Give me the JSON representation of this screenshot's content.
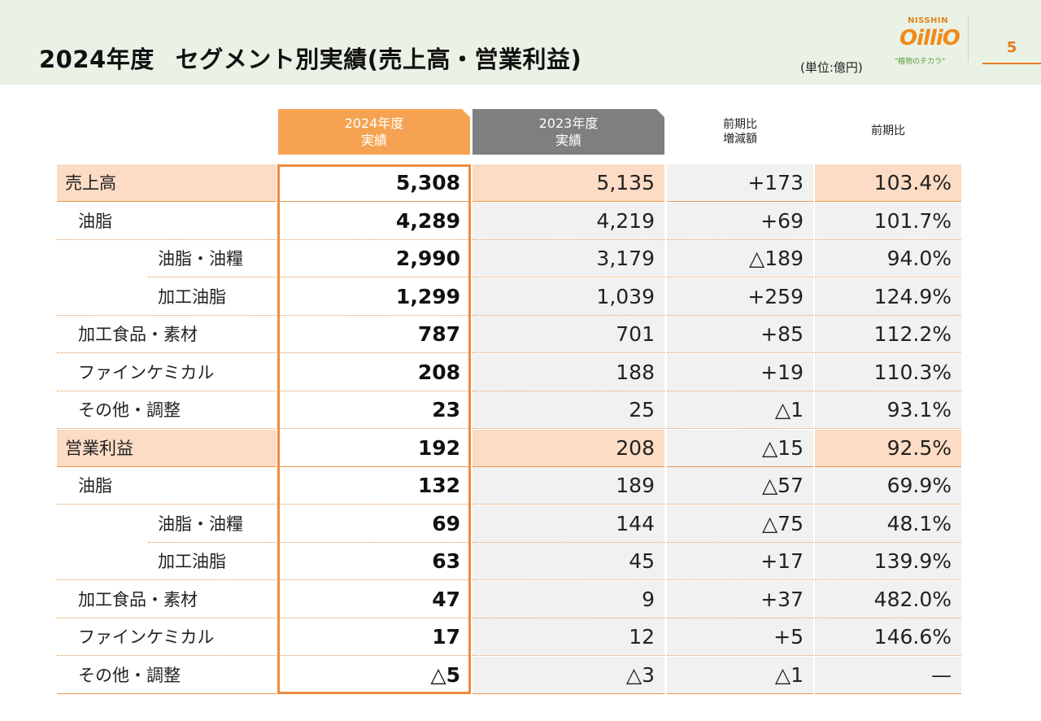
{
  "header": {
    "title_year": "2024年度",
    "title_main": "セグメント別実績(売上高・営業利益)",
    "unit": "(単位:億円)",
    "logo_brand": "NISSHIN",
    "logo_mark": "OilliO",
    "logo_tagline": "\"植物のチカラ\"",
    "page_number": "5"
  },
  "columns": {
    "fy2024": "2024年度\n実績",
    "fy2024_line1": "2024年度",
    "fy2024_line2": "実績",
    "fy2023_line1": "2023年度",
    "fy2023_line2": "実績",
    "diff_line1": "前期比",
    "diff_line2": "増減額",
    "ratio": "前期比"
  },
  "rows": [
    {
      "label": "売上高",
      "fy2024": "5,308",
      "fy2023": "5,135",
      "diff": "+173",
      "ratio": "103.4%"
    },
    {
      "label": "油脂",
      "fy2024": "4,289",
      "fy2023": "4,219",
      "diff": "+69",
      "ratio": "101.7%"
    },
    {
      "label": "油脂・油糧",
      "fy2024": "2,990",
      "fy2023": "3,179",
      "diff": "△189",
      "ratio": "94.0%"
    },
    {
      "label": "加工油脂",
      "fy2024": "1,299",
      "fy2023": "1,039",
      "diff": "+259",
      "ratio": "124.9%"
    },
    {
      "label": "加工食品・素材",
      "fy2024": "787",
      "fy2023": "701",
      "diff": "+85",
      "ratio": "112.2%"
    },
    {
      "label": "ファインケミカル",
      "fy2024": "208",
      "fy2023": "188",
      "diff": "+19",
      "ratio": "110.3%"
    },
    {
      "label": "その他・調整",
      "fy2024": "23",
      "fy2023": "25",
      "diff": "△1",
      "ratio": "93.1%"
    },
    {
      "label": "営業利益",
      "fy2024": "192",
      "fy2023": "208",
      "diff": "△15",
      "ratio": "92.5%"
    },
    {
      "label": "油脂",
      "fy2024": "132",
      "fy2023": "189",
      "diff": "△57",
      "ratio": "69.9%"
    },
    {
      "label": "油脂・油糧",
      "fy2024": "69",
      "fy2023": "144",
      "diff": "△75",
      "ratio": "48.1%"
    },
    {
      "label": "加工油脂",
      "fy2024": "63",
      "fy2023": "45",
      "diff": "+17",
      "ratio": "139.9%"
    },
    {
      "label": "加工食品・素材",
      "fy2024": "47",
      "fy2023": "9",
      "diff": "+37",
      "ratio": "482.0%"
    },
    {
      "label": "ファインケミカル",
      "fy2024": "17",
      "fy2023": "12",
      "diff": "+5",
      "ratio": "146.6%"
    },
    {
      "label": "その他・調整",
      "fy2024": "△5",
      "fy2023": "△3",
      "diff": "△1",
      "ratio": "—"
    }
  ]
}
